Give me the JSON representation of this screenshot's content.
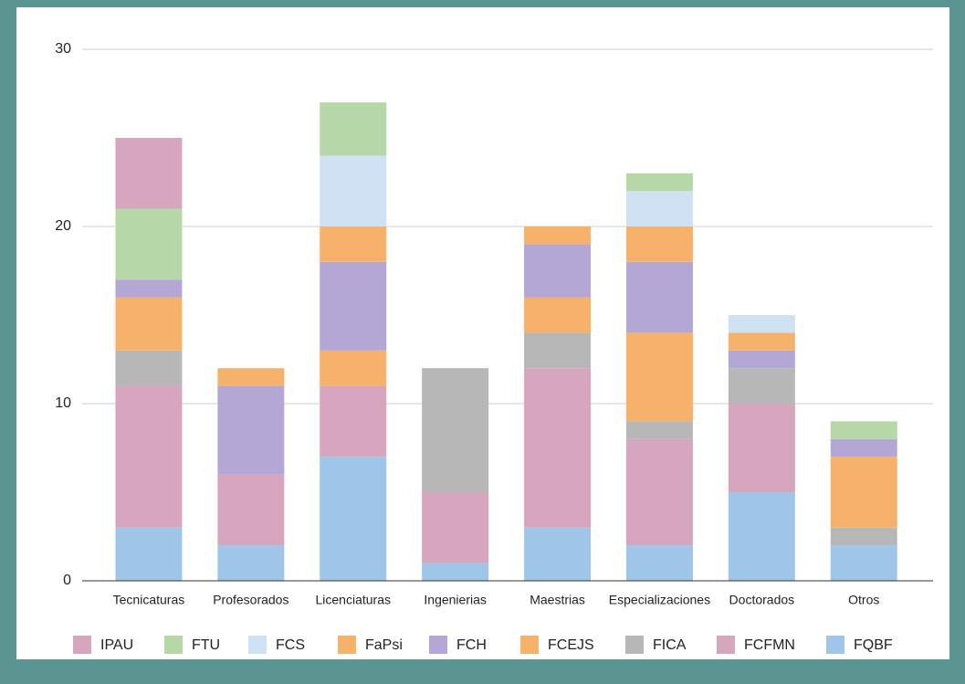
{
  "chart_data": {
    "type": "stacked_bar",
    "categories": [
      "Tecnicaturas",
      "Profesorados",
      "Licenciaturas",
      "Ingenierias",
      "Maestrias",
      "Especializaciones",
      "Doctorados",
      "Otros"
    ],
    "series": [
      {
        "name": "FQBF",
        "color": "#9fc5e8",
        "values": [
          3,
          2,
          7,
          1,
          3,
          2,
          5,
          2
        ]
      },
      {
        "name": "FCFMN",
        "color": "#d5a6bd",
        "values": [
          8,
          4,
          4,
          4,
          9,
          6,
          5,
          0
        ]
      },
      {
        "name": "FICA",
        "color": "#b7b7b7",
        "values": [
          2,
          0,
          0,
          7,
          2,
          1,
          2,
          1
        ]
      },
      {
        "name": "FCEJS",
        "color": "#f6b26b",
        "values": [
          3,
          0,
          2,
          0,
          2,
          5,
          0,
          4
        ]
      },
      {
        "name": "FCH",
        "color": "#b4a7d6",
        "values": [
          1,
          5,
          5,
          0,
          3,
          4,
          1,
          1
        ]
      },
      {
        "name": "FaPsi",
        "color": "#f6b26b",
        "values": [
          0,
          1,
          2,
          0,
          1,
          2,
          1,
          0
        ]
      },
      {
        "name": "FCS",
        "color": "#cfe2f3",
        "values": [
          0,
          0,
          4,
          0,
          0,
          2,
          1,
          0
        ]
      },
      {
        "name": "FTU",
        "color": "#b6d7a8",
        "values": [
          4,
          0,
          3,
          0,
          0,
          1,
          0,
          1
        ]
      },
      {
        "name": "IPAU",
        "color": "#d5a6bd",
        "values": [
          4,
          0,
          0,
          0,
          0,
          0,
          0,
          0
        ]
      }
    ],
    "ylim": [
      0,
      30
    ],
    "yticks": [
      0,
      10,
      20,
      30
    ],
    "grid": true,
    "legend": "bottom"
  }
}
